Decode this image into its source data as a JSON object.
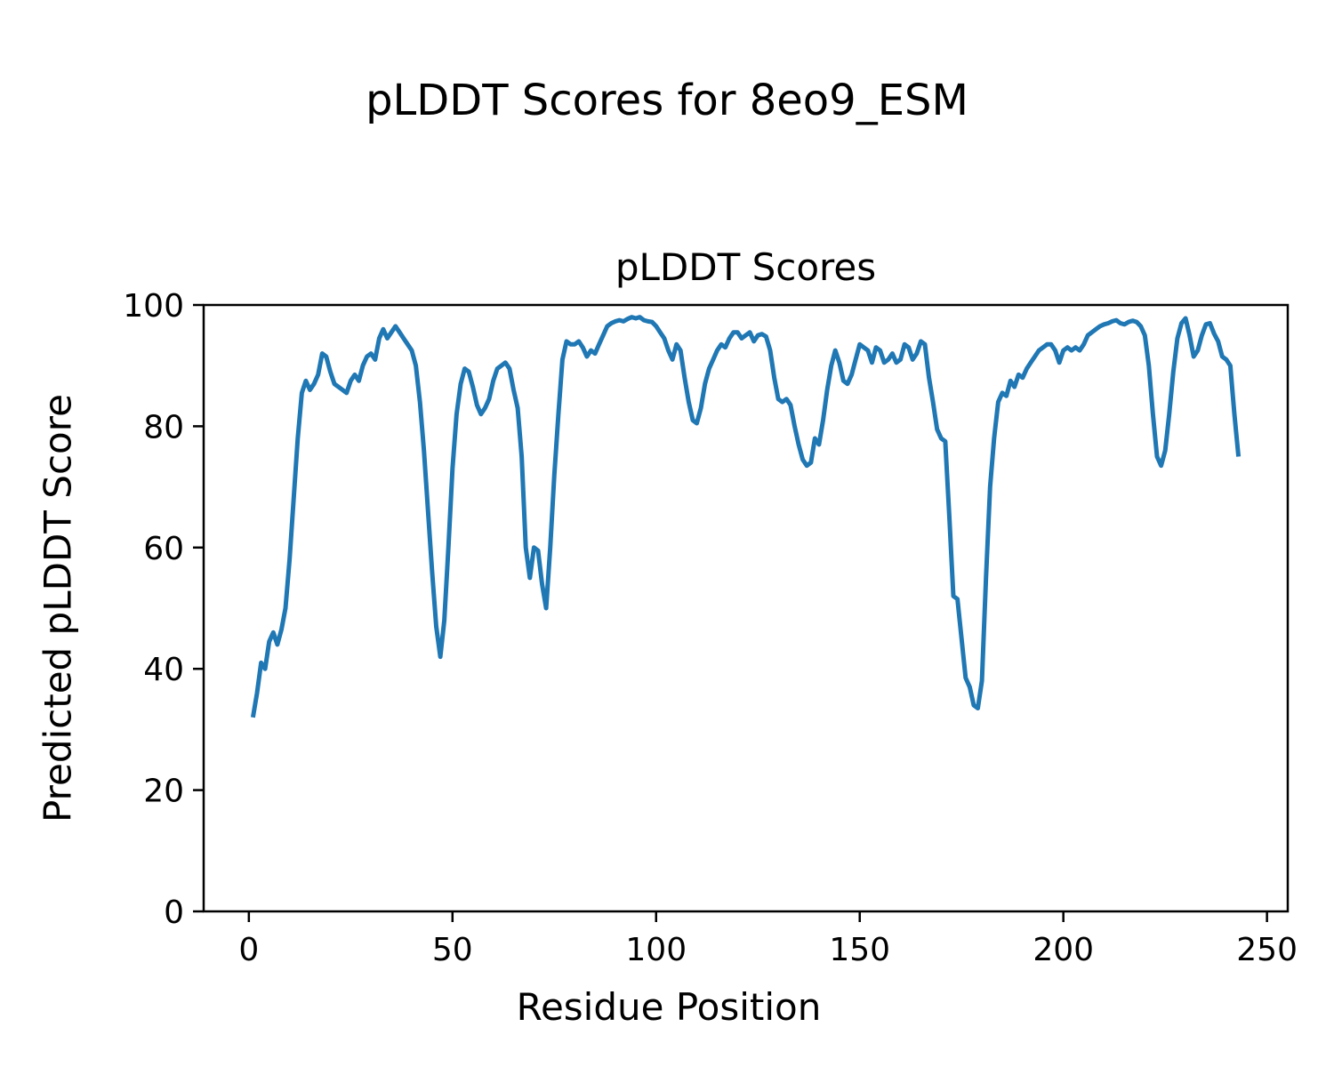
{
  "figure": {
    "suptitle": "pLDDT Scores for 8eo9_ESM"
  },
  "chart_data": {
    "type": "line",
    "title": "pLDDT Scores",
    "xlabel": "Residue Position",
    "ylabel": "Predicted pLDDT Score",
    "xlim": [
      -11.1,
      255.1
    ],
    "ylim": [
      0,
      100
    ],
    "xticks": [
      0,
      50,
      100,
      150,
      200,
      250
    ],
    "yticks": [
      0,
      20,
      40,
      60,
      80,
      100
    ],
    "grid": false,
    "legend": "none",
    "line_color": "#1f77b4",
    "axis_color": "#000000",
    "series": [
      {
        "name": "pLDDT",
        "x_start": 1,
        "x_step": 1,
        "values": [
          32,
          36,
          41,
          40,
          44.5,
          46,
          44,
          46.5,
          50,
          58,
          68,
          78,
          85.5,
          87.5,
          86,
          87,
          88.5,
          92,
          91.5,
          89,
          87,
          86.5,
          86,
          85.5,
          87.5,
          88.5,
          87.5,
          90,
          91.5,
          92,
          91,
          94.5,
          96,
          94.5,
          95.5,
          96.5,
          95.5,
          94.5,
          93.5,
          92.5,
          90,
          84,
          76,
          66,
          56,
          47,
          42,
          48,
          60,
          73,
          82,
          87,
          89.5,
          89,
          86.5,
          83.5,
          82,
          83,
          84.5,
          87.5,
          89.5,
          90,
          90.5,
          89.5,
          86,
          83,
          75,
          60,
          55,
          60,
          59.5,
          54,
          50,
          60,
          72,
          82,
          91,
          94,
          93.5,
          93.5,
          94,
          93,
          91.5,
          92.5,
          92,
          93.5,
          95,
          96.5,
          97,
          97.3,
          97.5,
          97.3,
          97.7,
          98,
          97.8,
          98,
          97.5,
          97.3,
          97.2,
          96.5,
          95.5,
          94.5,
          92.5,
          91,
          93.5,
          92.5,
          88,
          84,
          81,
          80.5,
          83,
          87,
          89.5,
          91,
          92.5,
          93.5,
          93,
          94.5,
          95.5,
          95.5,
          94.5,
          95,
          95.5,
          94,
          95,
          95.2,
          94.8,
          92.5,
          88,
          84.5,
          84,
          84.5,
          83.5,
          80,
          77,
          74.5,
          73.5,
          74,
          78,
          77,
          81,
          86,
          90,
          92.5,
          90.5,
          87.5,
          87,
          88.5,
          91,
          93.5,
          93,
          92.5,
          90.5,
          93,
          92.5,
          90.5,
          91,
          92,
          90.5,
          91,
          93.5,
          93,
          91,
          92,
          94,
          93.5,
          88,
          84,
          79.5,
          78,
          77.5,
          65,
          52,
          51.5,
          45,
          38.5,
          37,
          34,
          33.5,
          38,
          55,
          70,
          78,
          84,
          85.5,
          85,
          87.5,
          86.5,
          88.5,
          88,
          89.5,
          90.5,
          91.5,
          92.5,
          93,
          93.5,
          93.5,
          92.5,
          90.5,
          92.5,
          93,
          92.5,
          93,
          92.5,
          93.5,
          95,
          95.5,
          96,
          96.5,
          96.8,
          97,
          97.3,
          97.5,
          97,
          96.8,
          97.2,
          97.4,
          97.2,
          96.5,
          95,
          90,
          82,
          75,
          73.5,
          76,
          82,
          89,
          94.5,
          97,
          97.8,
          95,
          91.5,
          92.5,
          95,
          96.8,
          97,
          95.3,
          94,
          91.5,
          91,
          90,
          82,
          75
        ]
      }
    ]
  },
  "layout_meta": {
    "background": "#ffffff"
  }
}
